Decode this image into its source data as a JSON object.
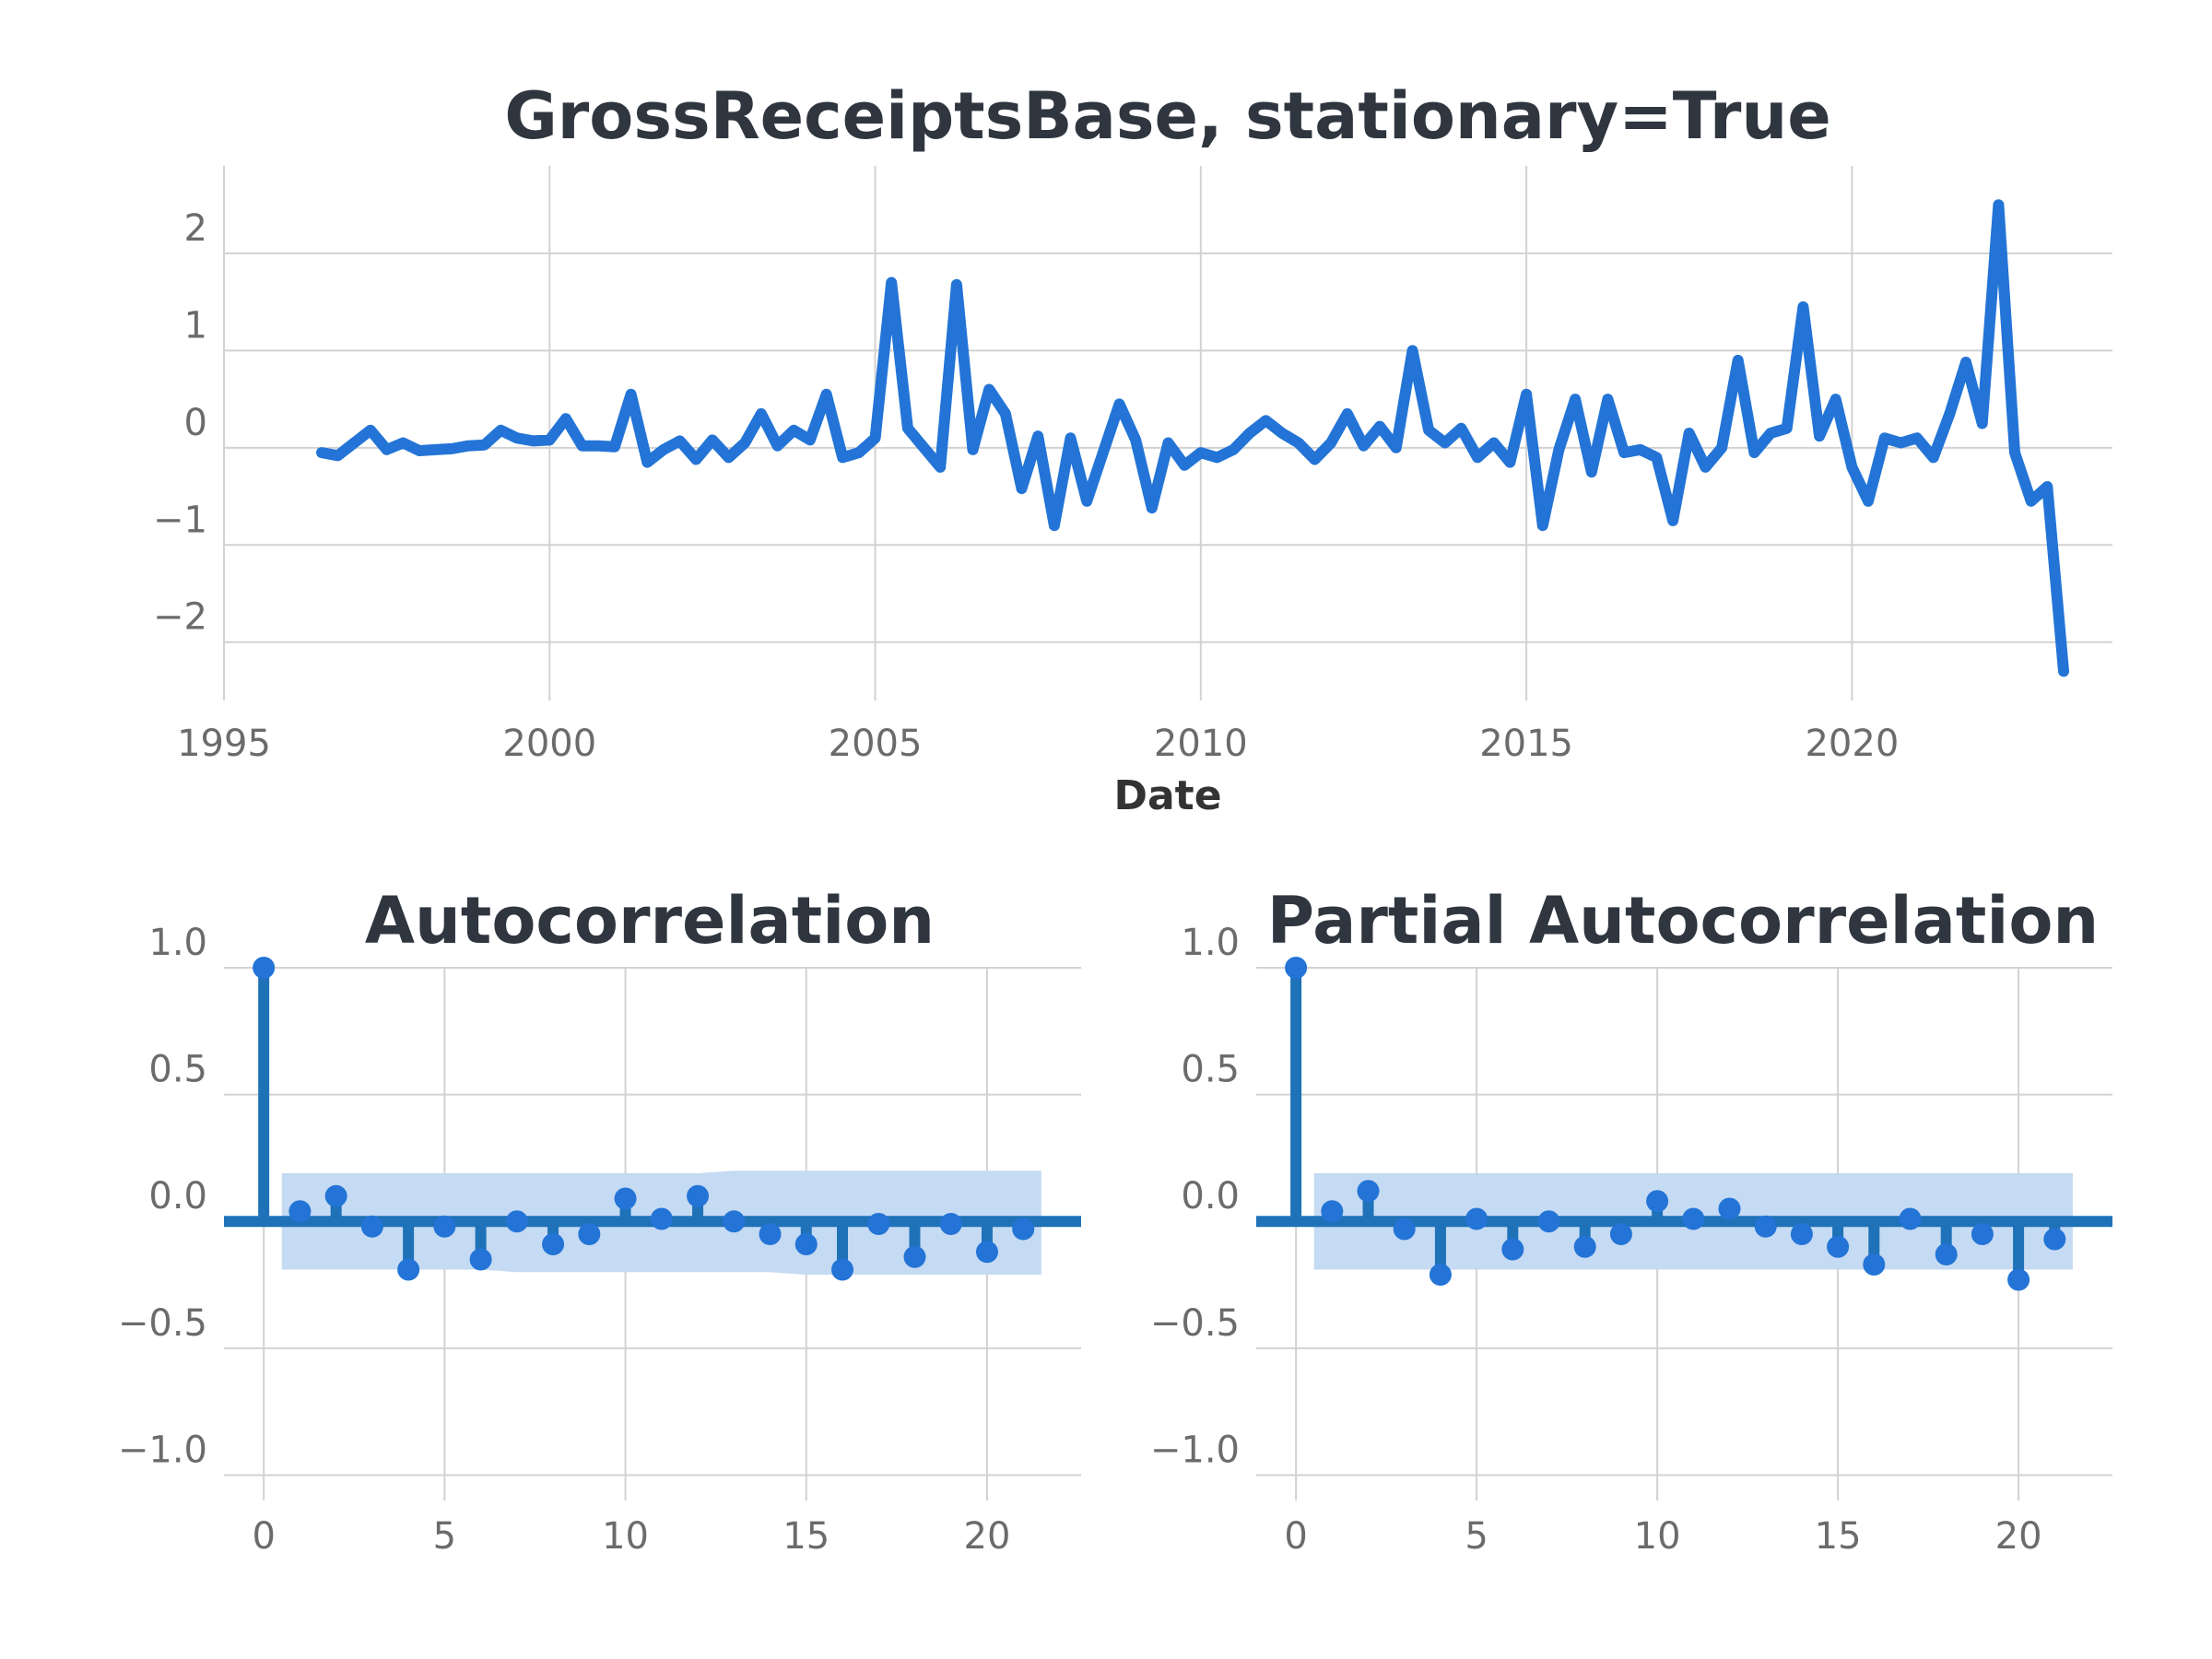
{
  "colors": {
    "line": "#2374d6",
    "stem": "#1f72b8",
    "marker": "#2374d6",
    "confidence_band": "#c5daf3",
    "grid": "#d2d2d2",
    "zero_line": "#1f72b8"
  },
  "chart_data": [
    {
      "type": "line",
      "title": "GrossReceiptsBase, stationary=True",
      "xlabel": "Date",
      "ylabel": "",
      "xlim": [
        1995,
        2024
      ],
      "ylim": [
        -2.6,
        2.9
      ],
      "xticks": [
        1995,
        2000,
        2005,
        2010,
        2015,
        2020
      ],
      "yticks": [
        2,
        1,
        0,
        -1,
        -2
      ],
      "ytick_labels": [
        "2",
        "1",
        "0",
        "−1",
        "−2"
      ],
      "grid": true,
      "series": [
        {
          "x": [
            1996.5,
            1996.75,
            1997,
            1997.25,
            1997.5,
            1997.75,
            1998,
            1998.25,
            1998.5,
            1998.75,
            1999,
            1999.25,
            1999.5,
            1999.75,
            2000,
            2000.25,
            2000.5,
            2000.75,
            2001,
            2001.25,
            2001.5,
            2001.75,
            2002,
            2002.25,
            2002.5,
            2002.75,
            2003,
            2003.25,
            2003.5,
            2003.75,
            2004,
            2004.25,
            2004.5,
            2004.75,
            2005,
            2005.25,
            2005.5,
            2005.75,
            2006,
            2006.25,
            2006.5,
            2006.75,
            2007,
            2007.25,
            2007.5,
            2007.75,
            2008,
            2008.25,
            2008.5,
            2008.75,
            2009,
            2009.25,
            2009.5,
            2009.75,
            2010,
            2010.25,
            2010.5,
            2010.75,
            2011,
            2011.25,
            2011.5,
            2011.75,
            2012,
            2012.25,
            2012.5,
            2012.75,
            2013,
            2013.25,
            2013.5,
            2013.75,
            2014,
            2014.25,
            2014.5,
            2014.75,
            2015,
            2015.25,
            2015.5,
            2015.75,
            2016,
            2016.25,
            2016.5,
            2016.75,
            2017,
            2017.25,
            2017.5,
            2017.75,
            2018,
            2018.25,
            2018.5,
            2018.75,
            2019,
            2019.25,
            2019.5,
            2019.75,
            2020,
            2020.25,
            2020.5,
            2020.75,
            2021,
            2021.25,
            2021.5,
            2021.75,
            2022,
            2022.25,
            2022.5,
            2022.75,
            2023,
            2023.25
          ],
          "y": [
            -0.05,
            -0.08,
            0.05,
            0.18,
            -0.02,
            0.05,
            -0.03,
            -0.02,
            -0.01,
            0.02,
            0.03,
            0.18,
            0.1,
            0.07,
            0.08,
            0.3,
            0.02,
            0.02,
            0.01,
            0.55,
            -0.15,
            -0.02,
            0.07,
            -0.12,
            0.08,
            -0.1,
            0.05,
            0.35,
            0.02,
            0.18,
            0.08,
            0.55,
            -0.1,
            -0.05,
            0.1,
            1.7,
            0.2,
            0.0,
            -0.2,
            1.68,
            -0.02,
            0.6,
            0.35,
            -0.42,
            0.12,
            -0.8,
            0.1,
            -0.55,
            -0.05,
            0.45,
            0.08,
            -0.62,
            0.05,
            -0.18,
            -0.05,
            -0.1,
            -0.02,
            0.15,
            0.28,
            0.15,
            0.05,
            -0.12,
            0.05,
            0.35,
            0.02,
            0.22,
            0.0,
            1.0,
            0.18,
            0.05,
            0.2,
            -0.1,
            0.05,
            -0.15,
            0.55,
            -0.8,
            -0.02,
            0.5,
            -0.25,
            0.5,
            -0.05,
            -0.02,
            -0.1,
            -0.75,
            0.15,
            -0.2,
            0.0,
            0.9,
            -0.05,
            0.15,
            0.2,
            1.45,
            0.12,
            0.5,
            -0.2,
            -0.55,
            0.1,
            0.05,
            0.1,
            -0.1,
            0.35,
            0.88,
            0.25,
            2.5,
            -0.05,
            -0.55,
            -0.4,
            -2.3
          ]
        }
      ]
    },
    {
      "type": "stem",
      "title": "Autocorrelation",
      "xlabel": "",
      "ylabel": "",
      "xlim": [
        -1.1,
        22.6
      ],
      "ylim": [
        -1.1,
        1.0
      ],
      "xticks": [
        0,
        5,
        10,
        15,
        20
      ],
      "yticks": [
        1.0,
        0.5,
        0.0,
        -0.5,
        -1.0
      ],
      "ytick_labels": [
        "1.0",
        "0.5",
        "0.0",
        "−0.5",
        "−1.0"
      ],
      "grid": true,
      "lags": [
        0,
        1,
        2,
        3,
        4,
        5,
        6,
        7,
        8,
        9,
        10,
        11,
        12,
        13,
        14,
        15,
        16,
        17,
        18,
        19,
        20,
        21
      ],
      "values": [
        1.0,
        0.04,
        0.1,
        -0.02,
        -0.19,
        -0.02,
        -0.15,
        0.0,
        -0.09,
        -0.05,
        0.09,
        0.01,
        0.1,
        0.0,
        -0.05,
        -0.09,
        -0.19,
        -0.01,
        -0.14,
        -0.01,
        -0.12,
        -0.03
      ],
      "confidence_upper": [
        0.19,
        0.19,
        0.19,
        0.19,
        0.19,
        0.19,
        0.19,
        0.19,
        0.19,
        0.19,
        0.19,
        0.19,
        0.19,
        0.2,
        0.2,
        0.2,
        0.2,
        0.2,
        0.2,
        0.2,
        0.2,
        0.2
      ],
      "confidence_lower": [
        -0.19,
        -0.19,
        -0.19,
        -0.19,
        -0.19,
        -0.19,
        -0.19,
        -0.2,
        -0.2,
        -0.2,
        -0.2,
        -0.2,
        -0.2,
        -0.2,
        -0.2,
        -0.21,
        -0.21,
        -0.21,
        -0.21,
        -0.21,
        -0.21,
        -0.21
      ]
    },
    {
      "type": "stem",
      "title": "Partial Autocorrelation",
      "xlabel": "",
      "ylabel": "",
      "xlim": [
        -1.1,
        22.6
      ],
      "ylim": [
        -1.1,
        1.0
      ],
      "xticks": [
        0,
        5,
        10,
        15,
        20
      ],
      "yticks": [
        1.0,
        0.5,
        0.0,
        -0.5,
        -1.0
      ],
      "ytick_labels": [
        "1.0",
        "0.5",
        "0.0",
        "−0.5",
        "−1.0"
      ],
      "grid": true,
      "lags": [
        0,
        1,
        2,
        3,
        4,
        5,
        6,
        7,
        8,
        9,
        10,
        11,
        12,
        13,
        14,
        15,
        16,
        17,
        18,
        19,
        20,
        21
      ],
      "values": [
        1.0,
        0.04,
        0.12,
        -0.03,
        -0.21,
        0.01,
        -0.11,
        0.0,
        -0.1,
        -0.05,
        0.08,
        0.01,
        0.05,
        -0.02,
        -0.05,
        -0.1,
        -0.17,
        0.01,
        -0.13,
        -0.05,
        -0.23,
        -0.07
      ],
      "confidence_upper": [
        0.19,
        0.19,
        0.19,
        0.19,
        0.19,
        0.19,
        0.19,
        0.19,
        0.19,
        0.19,
        0.19,
        0.19,
        0.19,
        0.19,
        0.19,
        0.19,
        0.19,
        0.19,
        0.19,
        0.19,
        0.19,
        0.19
      ],
      "confidence_lower": [
        -0.19,
        -0.19,
        -0.19,
        -0.19,
        -0.19,
        -0.19,
        -0.19,
        -0.19,
        -0.19,
        -0.19,
        -0.19,
        -0.19,
        -0.19,
        -0.19,
        -0.19,
        -0.19,
        -0.19,
        -0.19,
        -0.19,
        -0.19,
        -0.19,
        -0.19
      ]
    }
  ]
}
